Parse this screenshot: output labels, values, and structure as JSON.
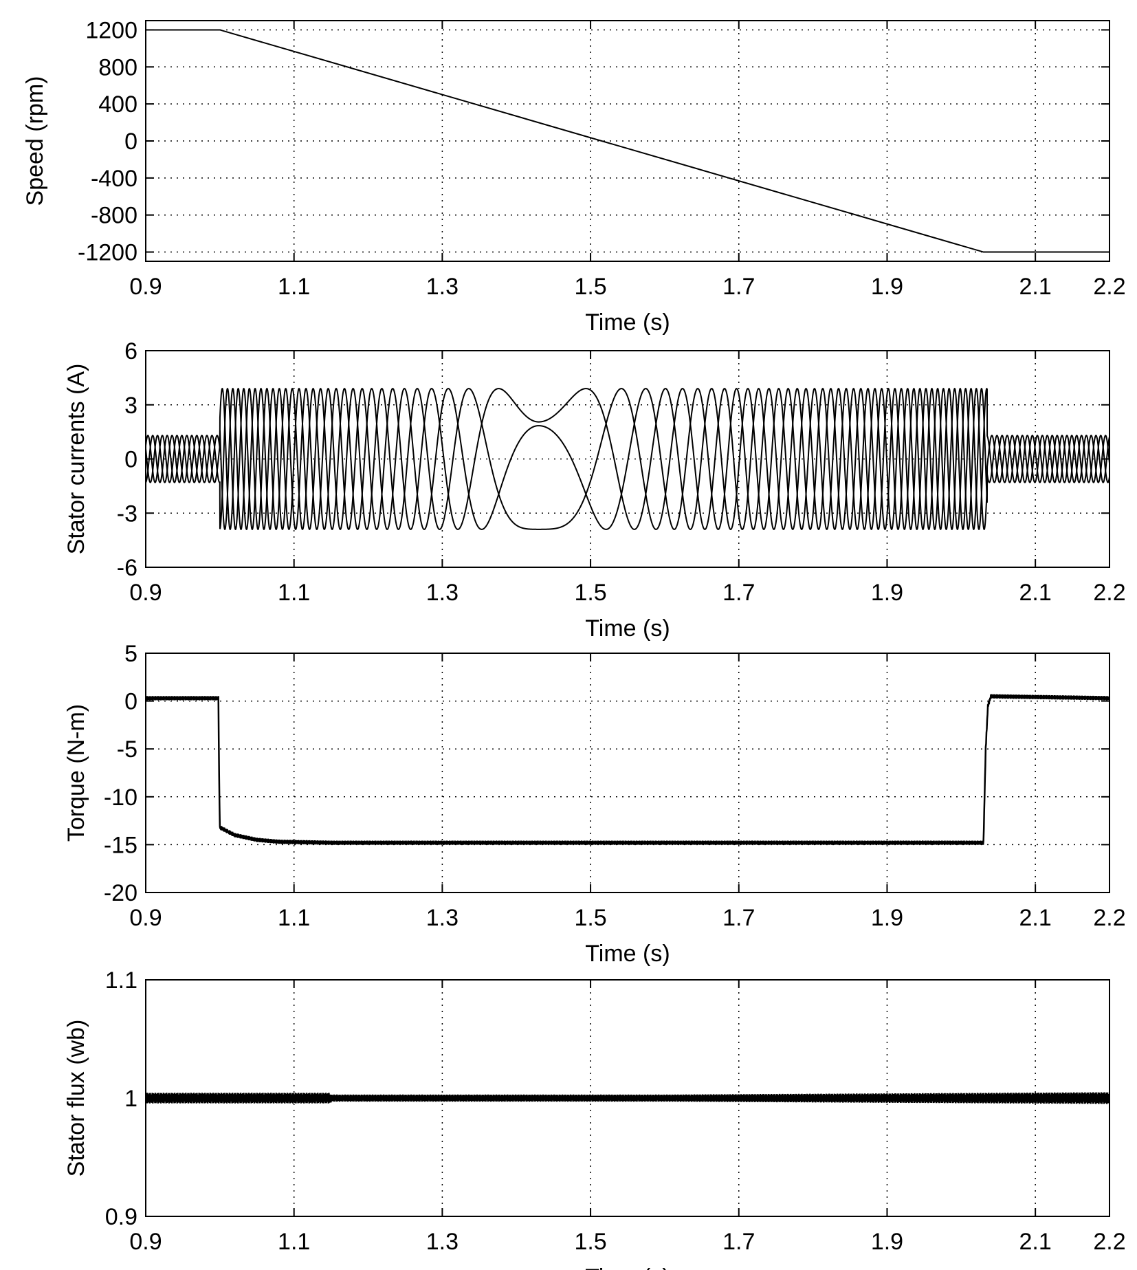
{
  "chart_data": [
    {
      "type": "line",
      "ylabel": "Speed (rpm)",
      "xlabel": "Time (s)",
      "xlim": [
        0.9,
        2.2
      ],
      "ylim": [
        -1300,
        1300
      ],
      "xticks": [
        0.9,
        1.1,
        1.3,
        1.5,
        1.7,
        1.9,
        2.1,
        2.2
      ],
      "yticks": [
        1200,
        800,
        400,
        0,
        -400,
        -800,
        -1200
      ],
      "grid": true,
      "series": [
        {
          "x": [
            0.9,
            1.0,
            2.03,
            2.2
          ],
          "y": [
            1200,
            1200,
            -1200,
            -1200
          ]
        }
      ]
    },
    {
      "type": "line",
      "ylabel": "Stator currents (A)",
      "xlabel": "Time (s)",
      "xlim": [
        0.9,
        2.2
      ],
      "ylim": [
        -6,
        6
      ],
      "xticks": [
        0.9,
        1.1,
        1.3,
        1.5,
        1.7,
        1.9,
        2.1,
        2.2
      ],
      "yticks": [
        6,
        3,
        0,
        -3,
        -6
      ],
      "grid": true,
      "phases": 3,
      "envelope": {
        "t": [
          0.9,
          1.0,
          1.0,
          2.035,
          2.035,
          2.2
        ],
        "amplitude": [
          1.3,
          1.3,
          3.9,
          3.9,
          1.3,
          1.3
        ]
      },
      "electrical_frequency_hz": {
        "t": [
          0.9,
          1.0,
          1.43,
          2.035,
          2.2
        ],
        "f": [
          52,
          48,
          0,
          -48,
          -52
        ]
      }
    },
    {
      "type": "line",
      "ylabel": "Torque (N-m)",
      "xlabel": "Time (s)",
      "xlim": [
        0.9,
        2.2
      ],
      "ylim": [
        -20,
        5
      ],
      "xticks": [
        0.9,
        1.1,
        1.3,
        1.5,
        1.7,
        1.9,
        2.1,
        2.2
      ],
      "yticks": [
        5,
        0,
        -5,
        -10,
        -15,
        -20
      ],
      "grid": true,
      "series": [
        {
          "x": [
            0.9,
            0.998,
            0.999,
            1.0,
            1.02,
            1.05,
            1.08,
            1.15,
            2.03,
            2.033,
            2.036,
            2.04,
            2.2
          ],
          "y": [
            0.3,
            0.3,
            -8,
            -13.2,
            -14.0,
            -14.5,
            -14.7,
            -14.8,
            -14.8,
            -5,
            -0.5,
            0.5,
            0.3
          ]
        }
      ]
    },
    {
      "type": "line",
      "ylabel": "Stator flux (wb)",
      "xlabel": "Time (s)",
      "xlim": [
        0.9,
        2.2
      ],
      "ylim": [
        0.9,
        1.1
      ],
      "xticks": [
        0.9,
        1.1,
        1.3,
        1.5,
        1.7,
        1.9,
        2.1,
        2.2
      ],
      "yticks": [
        1.1,
        1,
        0.9
      ],
      "grid": true,
      "series": [
        {
          "x": [
            0.9,
            2.2
          ],
          "y": [
            1.0,
            1.0
          ]
        }
      ]
    }
  ]
}
